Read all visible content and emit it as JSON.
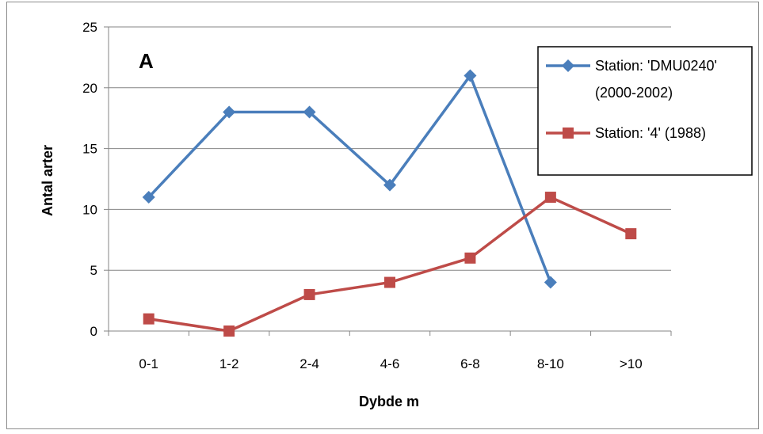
{
  "chart_data": {
    "type": "line",
    "title": "",
    "panel_label": "A",
    "xlabel": "Dybde m",
    "ylabel": "Antal arter",
    "categories": [
      "0-1",
      "1-2",
      "2-4",
      "4-6",
      "6-8",
      "8-10",
      ">10"
    ],
    "ylim": [
      0,
      25
    ],
    "yticks": [
      0,
      5,
      10,
      15,
      20,
      25
    ],
    "grid": true,
    "legend_position": "top-right",
    "series": [
      {
        "name": "Station: 'DMU0240' (2000-2002)",
        "legend_lines": [
          "Station: 'DMU0240'",
          "(2000-2002)"
        ],
        "color": "#4A7EBB",
        "marker": "diamond",
        "values": [
          11,
          18,
          18,
          12,
          21,
          4,
          null
        ]
      },
      {
        "name": "Station: '4' (1988)",
        "legend_lines": [
          "Station: '4' (1988)"
        ],
        "color": "#BE4B48",
        "marker": "square",
        "values": [
          1,
          0,
          3,
          4,
          6,
          11,
          8
        ]
      }
    ]
  }
}
